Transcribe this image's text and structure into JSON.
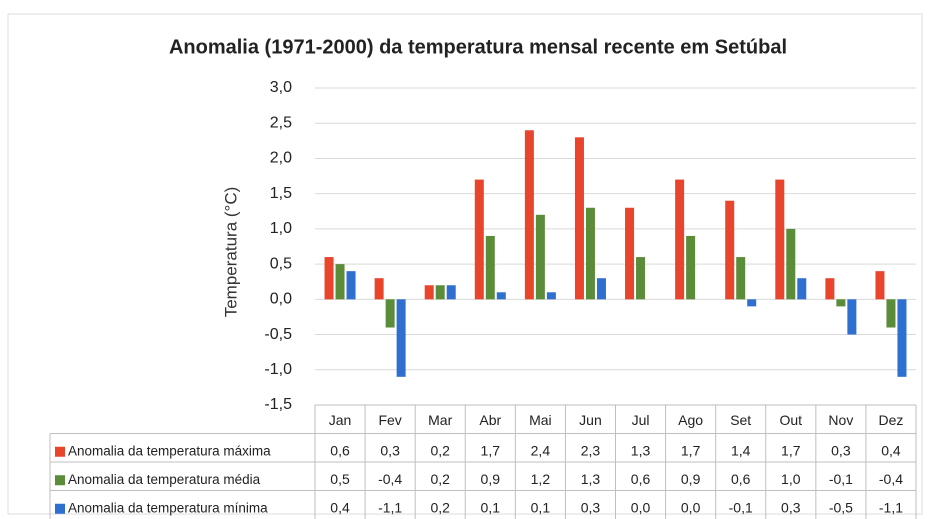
{
  "chart_data": {
    "type": "bar",
    "title": "Anomalia (1971-2000) da temperatura mensal recente em Setúbal",
    "y_label": "Temperatura (°C)",
    "categories": [
      "Jan",
      "Fev",
      "Mar",
      "Abr",
      "Mai",
      "Jun",
      "Jul",
      "Ago",
      "Set",
      "Out",
      "Nov",
      "Dez"
    ],
    "series": [
      {
        "name": "Anomalia da temperatura máxima",
        "color": "#e8452c",
        "values": [
          0.6,
          0.3,
          0.2,
          1.7,
          2.4,
          2.3,
          1.3,
          1.7,
          1.4,
          1.7,
          0.3,
          0.4
        ],
        "value_labels": [
          "0,6",
          "0,3",
          "0,2",
          "1,7",
          "2,4",
          "2,3",
          "1,3",
          "1,7",
          "1,4",
          "1,7",
          "0,3",
          "0,4"
        ]
      },
      {
        "name": "Anomalia da temperatura média",
        "color": "#5b8c3a",
        "values": [
          0.5,
          -0.4,
          0.2,
          0.9,
          1.2,
          1.3,
          0.6,
          0.9,
          0.6,
          1.0,
          -0.1,
          -0.4
        ],
        "value_labels": [
          "0,5",
          "-0,4",
          "0,2",
          "0,9",
          "1,2",
          "1,3",
          "0,6",
          "0,9",
          "0,6",
          "1,0",
          "-0,1",
          "-0,4"
        ]
      },
      {
        "name": "Anomalia da temperatura mínima",
        "color": "#2f6fcf",
        "values": [
          0.4,
          -1.1,
          0.2,
          0.1,
          0.1,
          0.3,
          0.0,
          0.0,
          -0.1,
          0.3,
          -0.5,
          -1.1
        ],
        "value_labels": [
          "0,4",
          "-1,1",
          "0,2",
          "0,1",
          "0,1",
          "0,3",
          "0,0",
          "0,0",
          "-0,1",
          "0,3",
          "-0,5",
          "-1,1"
        ]
      }
    ],
    "ylim": [
      -1.5,
      3.0
    ],
    "yticks": [
      {
        "value": -1.5,
        "label": "-1,5"
      },
      {
        "value": -1.0,
        "label": "-1,0"
      },
      {
        "value": -0.5,
        "label": "-0,5"
      },
      {
        "value": 0.0,
        "label": "0,0"
      },
      {
        "value": 0.5,
        "label": "0,5"
      },
      {
        "value": 1.0,
        "label": "1,0"
      },
      {
        "value": 1.5,
        "label": "1,5"
      },
      {
        "value": 2.0,
        "label": "2,0"
      },
      {
        "value": 2.5,
        "label": "2,5"
      },
      {
        "value": 3.0,
        "label": "3,0"
      }
    ],
    "grid": true
  }
}
